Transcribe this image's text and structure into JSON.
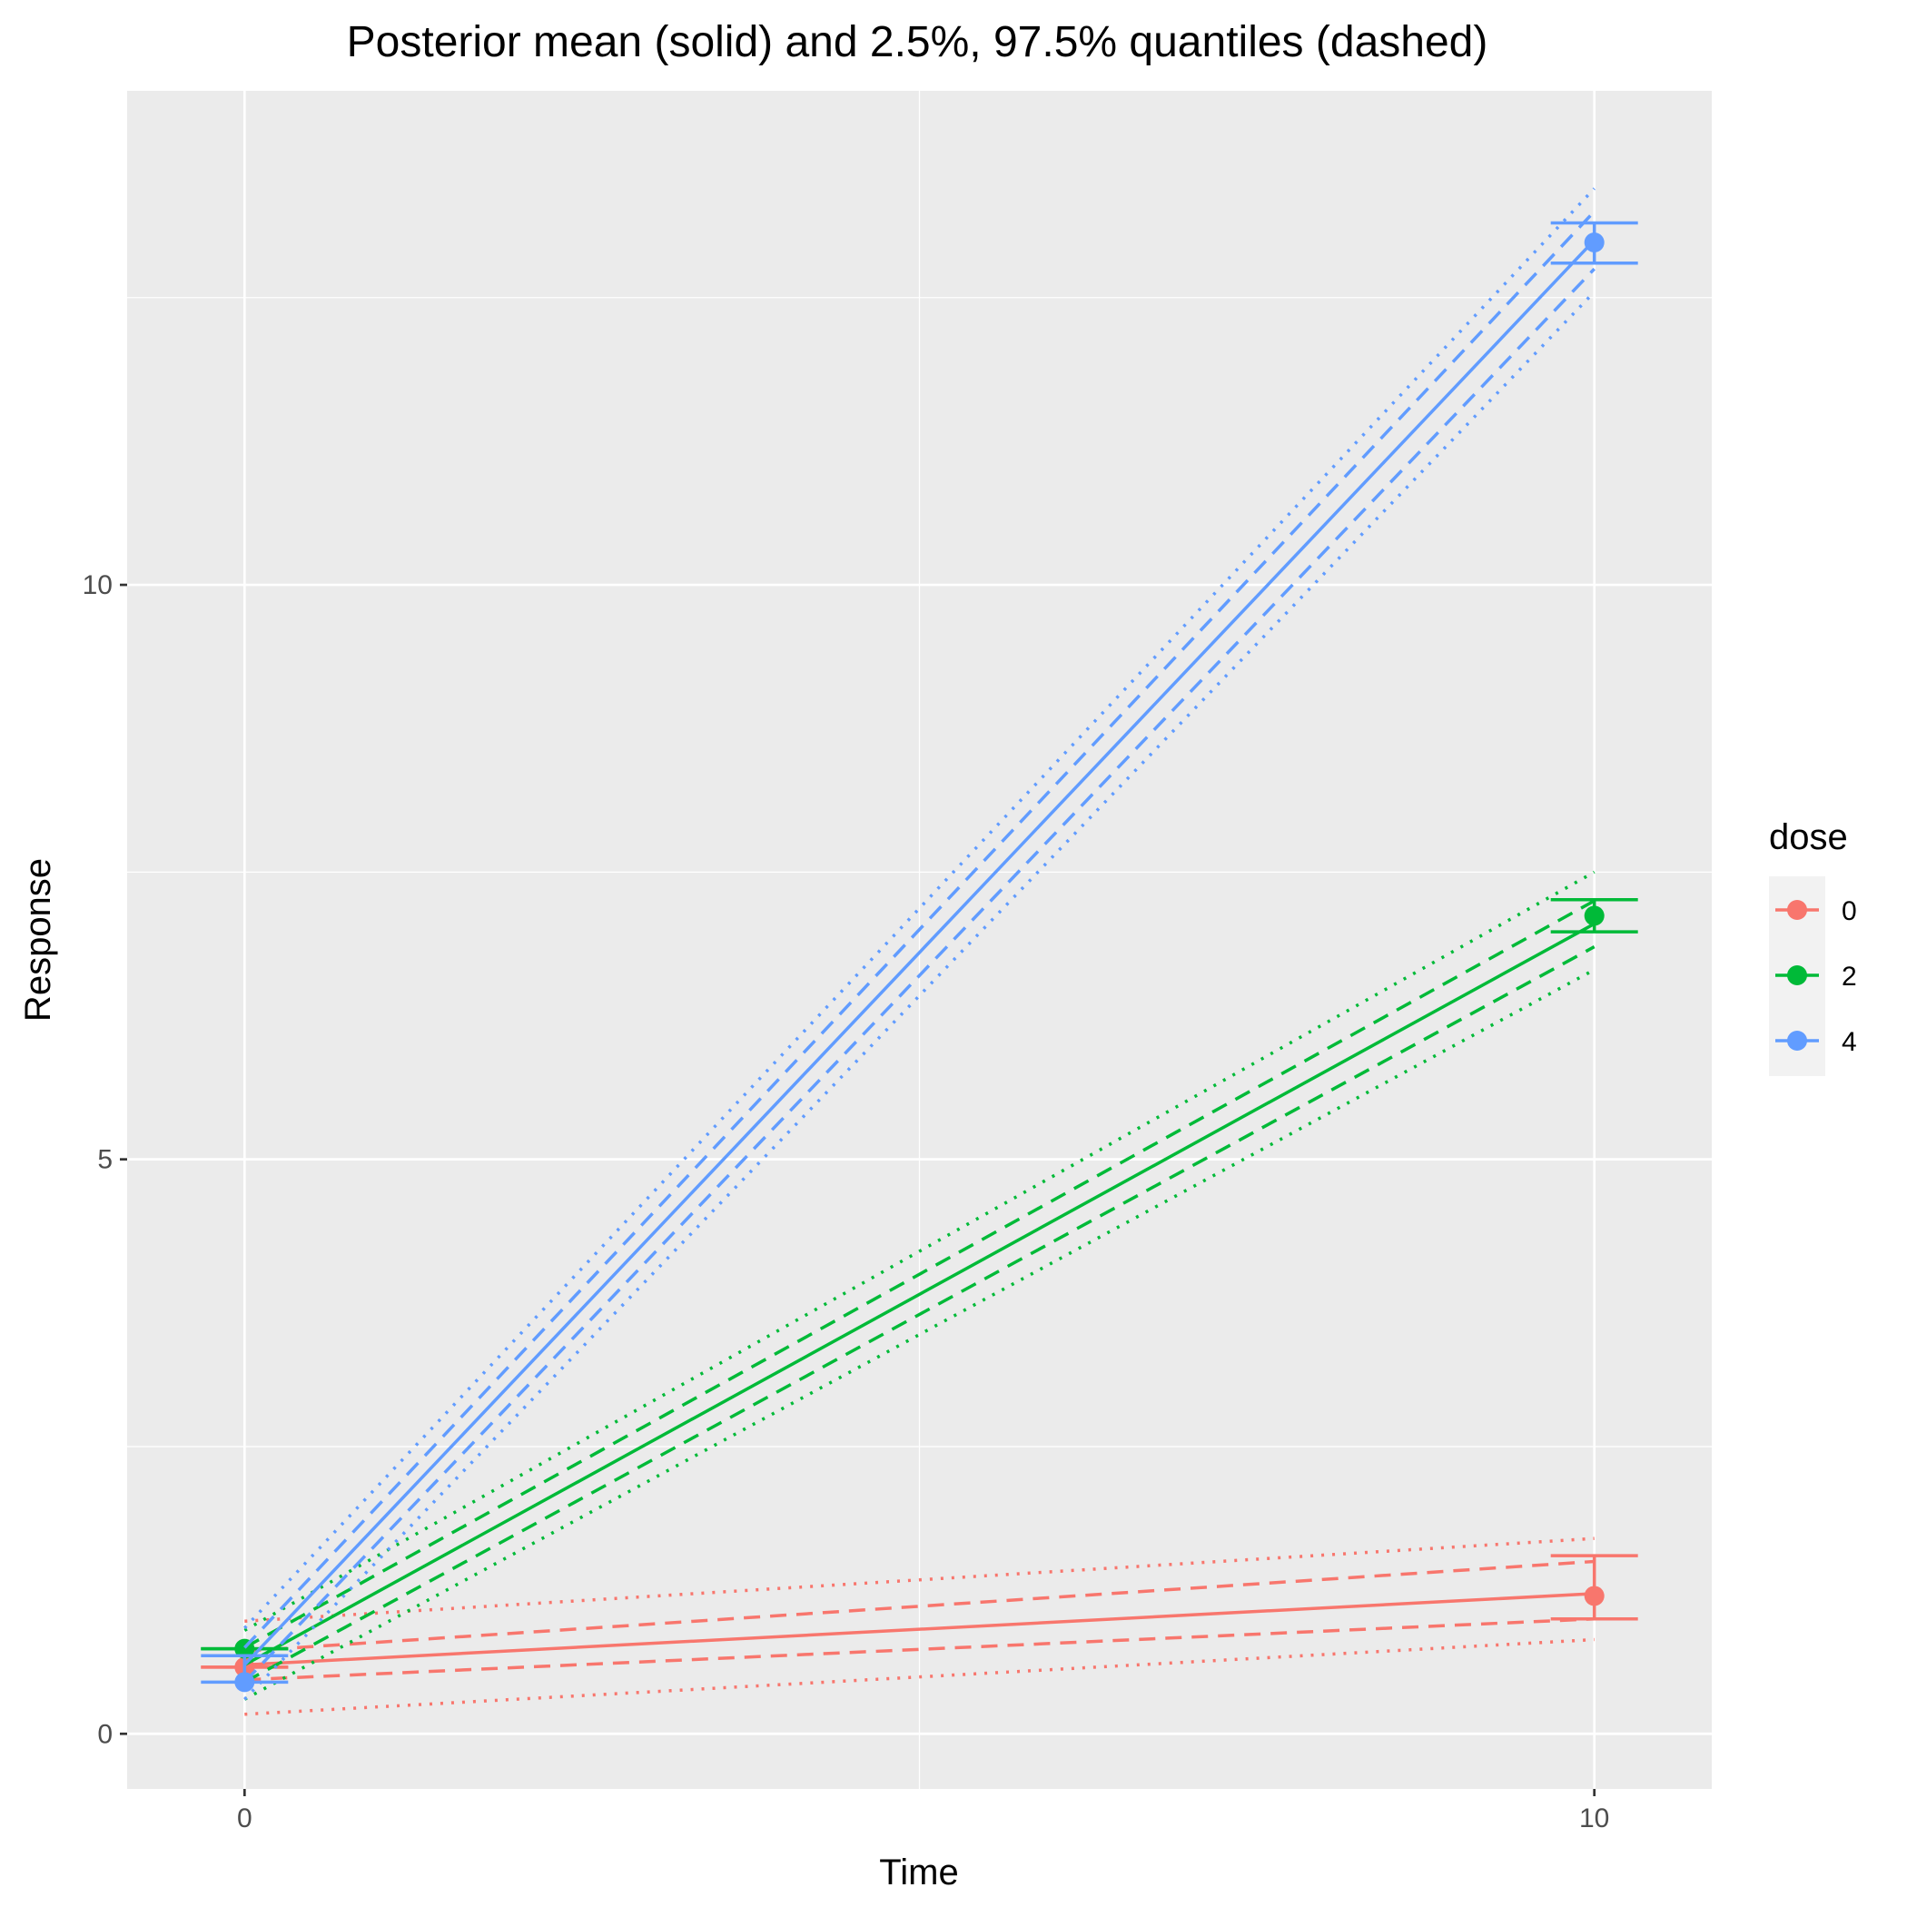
{
  "chart_data": {
    "type": "line",
    "title": "Posterior mean (solid) and 2.5%, 97.5% quantiles (dashed)",
    "xlabel": "Time",
    "ylabel": "Response",
    "x_ticks": [
      0,
      10
    ],
    "y_ticks": [
      0,
      5,
      10
    ],
    "xlim": [
      -0.87,
      10.87
    ],
    "ylim": [
      -0.48,
      14.3
    ],
    "grid": true,
    "legend": {
      "title": "dose",
      "position": "right"
    },
    "x": [
      0,
      10
    ],
    "series": [
      {
        "name": "0",
        "color": "#F8766D",
        "mean": [
          0.6,
          1.22
        ],
        "q_dashed_lower": [
          0.47,
          1.0
        ],
        "q_dashed_upper": [
          0.72,
          1.5
        ],
        "q_dotted_lower": [
          0.17,
          0.82
        ],
        "q_dotted_upper": [
          0.98,
          1.7
        ],
        "observed": [
          0.58,
          1.2
        ],
        "errorbar": [
          [
            0.58,
            0.58
          ],
          [
            1.0,
            1.55
          ]
        ]
      },
      {
        "name": "2",
        "color": "#00BA38",
        "mean": [
          0.6,
          7.05
        ],
        "q_dashed_lower": [
          0.45,
          6.85
        ],
        "q_dashed_upper": [
          0.75,
          7.25
        ],
        "q_dotted_lower": [
          0.3,
          6.65
        ],
        "q_dotted_upper": [
          0.9,
          7.5
        ],
        "observed": [
          0.74,
          7.12
        ],
        "errorbar": [
          [
            0.74,
            0.74
          ],
          [
            6.98,
            7.26
          ]
        ]
      },
      {
        "name": "4",
        "color": "#619CFF",
        "mean": [
          0.6,
          13.0
        ],
        "q_dashed_lower": [
          0.45,
          12.75
        ],
        "q_dashed_upper": [
          0.75,
          13.25
        ],
        "q_dotted_lower": [
          0.3,
          12.55
        ],
        "q_dotted_upper": [
          0.92,
          13.45
        ],
        "observed": [
          0.45,
          12.98
        ],
        "errorbar": [
          [
            0.45,
            0.68
          ],
          [
            12.8,
            13.15
          ]
        ]
      }
    ]
  }
}
